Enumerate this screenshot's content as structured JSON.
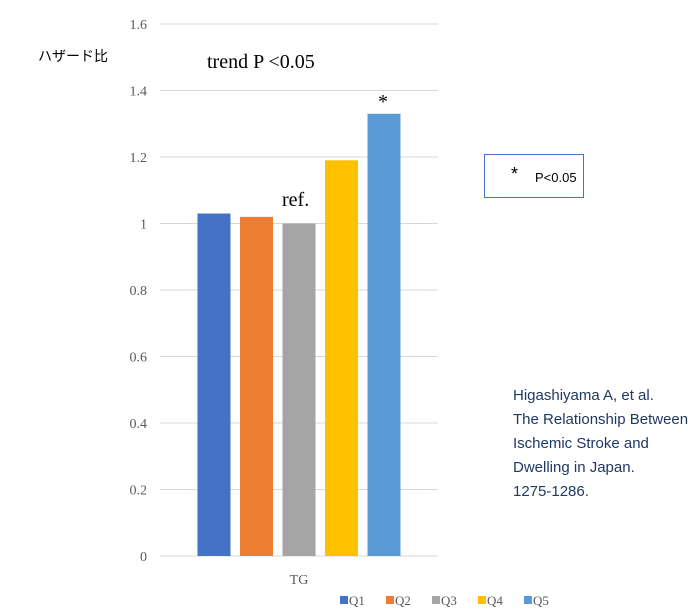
{
  "chart_data": {
    "type": "bar",
    "ylabel": "ハザード比",
    "xlabel": "",
    "categories": [
      "TG"
    ],
    "ylim": [
      0,
      1.6
    ],
    "yticks": [
      "0",
      "0.2",
      "0.4",
      "0.6",
      "0.8",
      "1",
      "1.2",
      "1.4",
      "1.6"
    ],
    "ytick_values": [
      0,
      0.2,
      0.4,
      0.6,
      0.8,
      1.0,
      1.2,
      1.4,
      1.6
    ],
    "grid": true,
    "legend_position": "bottom",
    "series": [
      {
        "name": "Q1",
        "values": [
          1.03
        ],
        "color": "#4472c4"
      },
      {
        "name": "Q2",
        "values": [
          1.02
        ],
        "color": "#ed7d31"
      },
      {
        "name": "Q3",
        "values": [
          1.0
        ],
        "color": "#a5a5a5"
      },
      {
        "name": "Q4",
        "values": [
          1.19
        ],
        "color": "#ffc000"
      },
      {
        "name": "Q5",
        "values": [
          1.33
        ],
        "color": "#5b9bd5"
      }
    ],
    "annotations": {
      "trend": "trend P <0.05",
      "ref": "ref.",
      "significance_marker": "*"
    }
  },
  "note": {
    "star": "*",
    "text": "P<0.05"
  },
  "citation_lines": [
    "Higashiyama A, et al.",
    "The Relationship Between",
    "Ischemic Stroke and",
    "Dwelling in Japan.",
    "1275-1286."
  ]
}
